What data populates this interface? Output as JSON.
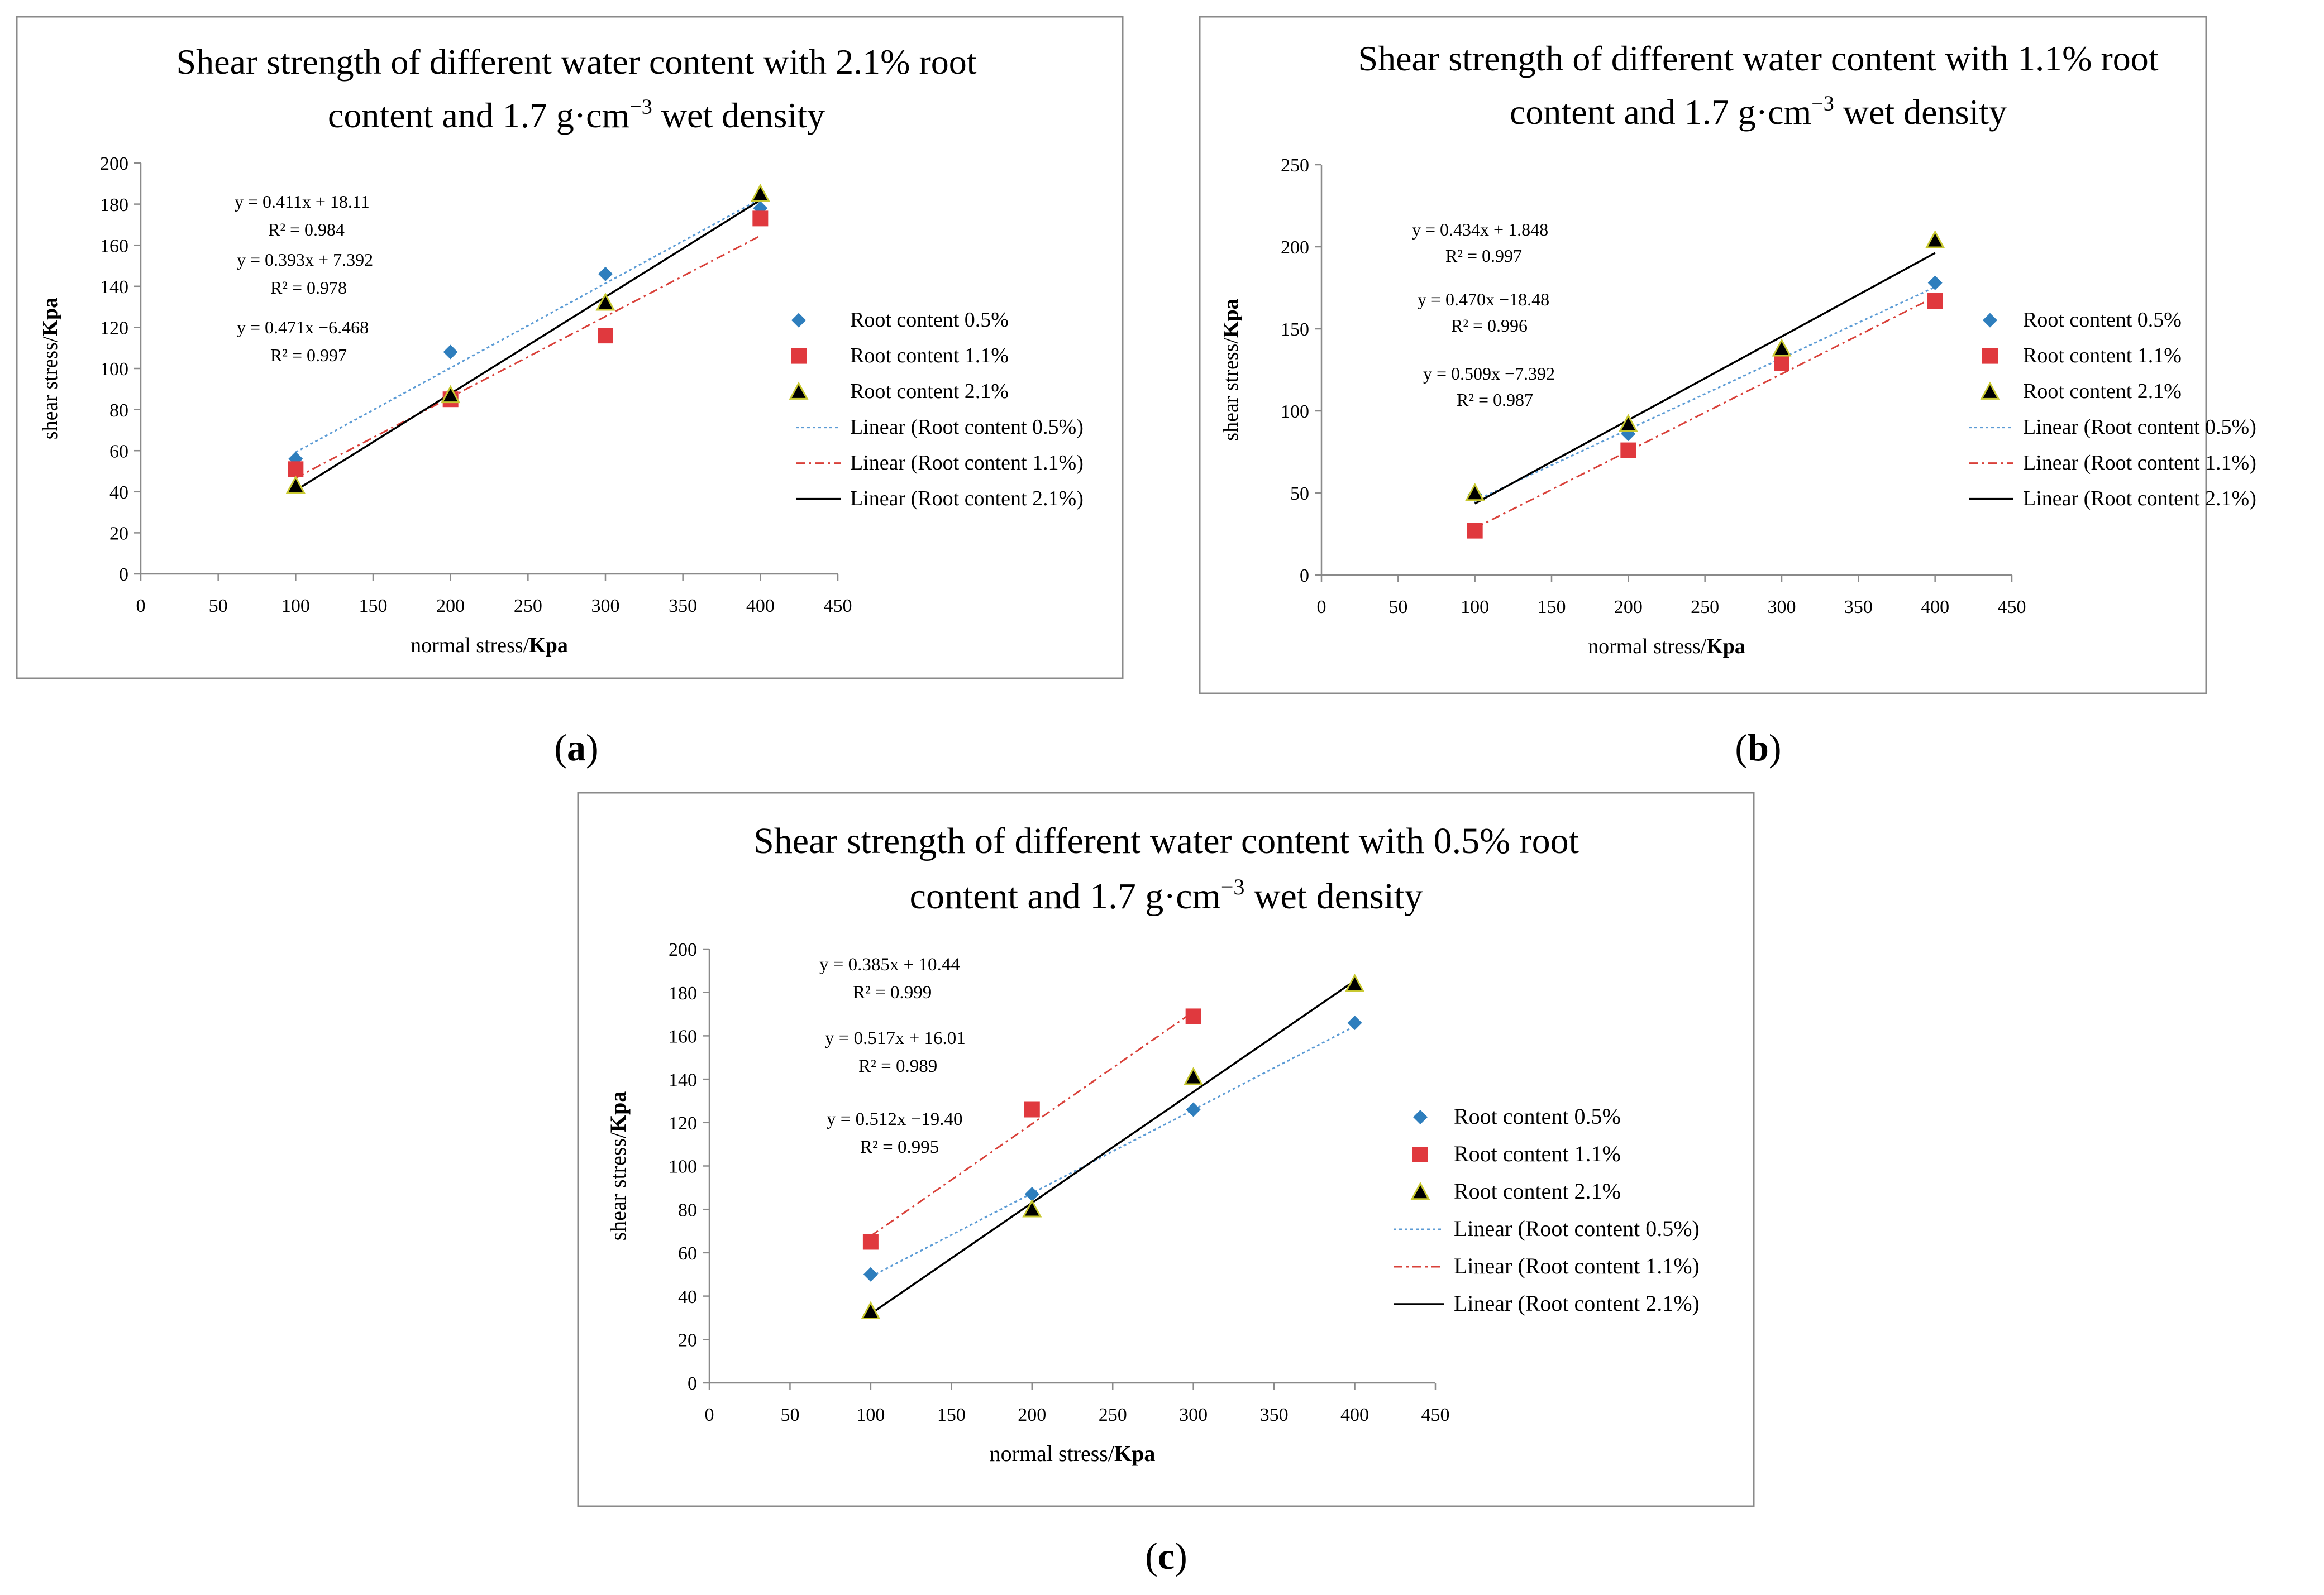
{
  "colors": {
    "series_05": "#2E7EBD",
    "series_11": "#E0393E",
    "series_21": "#000000",
    "trend_05": "#5B9BD5",
    "trend_11": "#D9413A",
    "trend_21": "#000000",
    "frame": "#8a8a8a",
    "axis": "#8a8a8a"
  },
  "chart_data": [
    {
      "id": "a",
      "type": "scatter",
      "caption_letter": "a",
      "title_line1": "Shear strength of different water content with 2.1% root",
      "title_line2_before": "content and 1.7 g·cm",
      "title_sup": "−3",
      "title_line2_after": " wet density",
      "xlabel_plain": "normal stress/",
      "xlabel_bold": "Kpa",
      "ylabel_plain": "shear stress/",
      "ylabel_bold": "Kpa",
      "xlim": [
        0,
        450
      ],
      "ylim": [
        0,
        200
      ],
      "xticks": [
        0,
        50,
        100,
        150,
        200,
        250,
        300,
        350,
        400,
        450
      ],
      "yticks": [
        0,
        20,
        40,
        60,
        80,
        100,
        120,
        140,
        160,
        180,
        200
      ],
      "series": [
        {
          "name": "Root content 0.5%",
          "marker": "diamond",
          "x": [
            100,
            200,
            300,
            400
          ],
          "y": [
            56,
            108,
            146,
            178
          ]
        },
        {
          "name": "Root content 1.1%",
          "marker": "square",
          "x": [
            100,
            200,
            300,
            400
          ],
          "y": [
            51,
            85,
            116,
            173
          ]
        },
        {
          "name": "Root content 2.1%",
          "marker": "triangle",
          "x": [
            100,
            200,
            300,
            400
          ],
          "y": [
            43,
            87,
            132,
            185
          ]
        }
      ],
      "trendlines": [
        {
          "name": "Linear (Root content 0.5%)",
          "slope": 0.411,
          "intercept": 18.11,
          "style": "dotted",
          "x_range": [
            100,
            400
          ]
        },
        {
          "name": "Linear (Root content 1.1%)",
          "slope": 0.393,
          "intercept": 7.392,
          "style": "dashdot",
          "x_range": [
            100,
            400
          ]
        },
        {
          "name": "Linear (Root content 2.1%)",
          "slope": 0.471,
          "intercept": -6.468,
          "style": "solid",
          "x_range": [
            100,
            400
          ]
        }
      ],
      "equations": [
        {
          "eq": "y = 0.411x + 18.11",
          "r2": "R² = 0.984"
        },
        {
          "eq": "y = 0.393x + 7.392",
          "r2": "R² = 0.978"
        },
        {
          "eq": "y = 0.471x −6.468",
          "r2": "R² = 0.997"
        }
      ],
      "legend_position": "right"
    },
    {
      "id": "b",
      "type": "scatter",
      "caption_letter": "b",
      "title_line1": "Shear strength of different water content with 1.1% root",
      "title_line2_before": "content and 1.7 g·cm",
      "title_sup": "−3",
      "title_line2_after": " wet density",
      "xlabel_plain": "normal stress/",
      "xlabel_bold": "Kpa",
      "ylabel_plain": "shear stress/",
      "ylabel_bold": "Kpa",
      "xlim": [
        0,
        450
      ],
      "ylim": [
        0,
        250
      ],
      "xticks": [
        0,
        50,
        100,
        150,
        200,
        250,
        300,
        350,
        400,
        450
      ],
      "yticks": [
        0,
        50,
        100,
        150,
        200,
        250
      ],
      "series": [
        {
          "name": "Root content 0.5%",
          "marker": "diamond",
          "x": [
            100,
            200,
            300,
            400
          ],
          "y": [
            49,
            86,
            133,
            178
          ]
        },
        {
          "name": "Root content 1.1%",
          "marker": "square",
          "x": [
            100,
            200,
            300,
            400
          ],
          "y": [
            27,
            76,
            129,
            167
          ]
        },
        {
          "name": "Root content 2.1%",
          "marker": "triangle",
          "x": [
            100,
            200,
            300,
            400
          ],
          "y": [
            50,
            92,
            138,
            204
          ]
        }
      ],
      "trendlines": [
        {
          "name": "Linear (Root content 0.5%)",
          "slope": 0.434,
          "intercept": 1.848,
          "style": "dotted",
          "x_range": [
            100,
            400
          ]
        },
        {
          "name": "Linear (Root content 1.1%)",
          "slope": 0.47,
          "intercept": -18.48,
          "style": "dashdot",
          "x_range": [
            100,
            400
          ]
        },
        {
          "name": "Linear (Root content 2.1%)",
          "slope": 0.509,
          "intercept": -7.392,
          "style": "solid",
          "x_range": [
            100,
            400
          ]
        }
      ],
      "equations": [
        {
          "eq": "y = 0.434x + 1.848",
          "r2": "R² = 0.997"
        },
        {
          "eq": "y = 0.470x −18.48",
          "r2": "R² = 0.996"
        },
        {
          "eq": "y = 0.509x −7.392",
          "r2": "R² = 0.987"
        }
      ],
      "legend_position": "right"
    },
    {
      "id": "c",
      "type": "scatter",
      "caption_letter": "c",
      "title_line1": "Shear strength of different water content with 0.5% root",
      "title_line2_before": "content and 1.7 g·cm",
      "title_sup": "−3",
      "title_line2_after": " wet density",
      "xlabel_plain": "normal stress/",
      "xlabel_bold": "Kpa",
      "ylabel_plain": "shear stress/",
      "ylabel_bold": "Kpa",
      "xlim": [
        0,
        450
      ],
      "ylim": [
        0,
        200
      ],
      "xticks": [
        0,
        50,
        100,
        150,
        200,
        250,
        300,
        350,
        400,
        450
      ],
      "yticks": [
        0,
        20,
        40,
        60,
        80,
        100,
        120,
        140,
        160,
        180,
        200
      ],
      "series": [
        {
          "name": "Root content 0.5%",
          "marker": "diamond",
          "x": [
            100,
            200,
            300,
            400
          ],
          "y": [
            50,
            87,
            126,
            166
          ]
        },
        {
          "name": "Root content 1.1%",
          "marker": "square",
          "x": [
            100,
            200,
            300
          ],
          "y": [
            65,
            126,
            169
          ]
        },
        {
          "name": "Root content 2.1%",
          "marker": "triangle",
          "x": [
            100,
            200,
            300,
            400
          ],
          "y": [
            33,
            80,
            141,
            184
          ]
        }
      ],
      "trendlines": [
        {
          "name": "Linear (Root content 0.5%)",
          "slope": 0.385,
          "intercept": 10.44,
          "style": "dotted",
          "x_range": [
            100,
            400
          ]
        },
        {
          "name": "Linear (Root content 1.1%)",
          "slope": 0.517,
          "intercept": 16.01,
          "style": "dashdot",
          "x_range": [
            100,
            300
          ]
        },
        {
          "name": "Linear (Root content 2.1%)",
          "slope": 0.512,
          "intercept": -19.4,
          "style": "solid",
          "x_range": [
            100,
            400
          ]
        }
      ],
      "equations": [
        {
          "eq": "y = 0.385x + 10.44",
          "r2": "R² = 0.999"
        },
        {
          "eq": "y = 0.517x + 16.01",
          "r2": "R² = 0.989"
        },
        {
          "eq": "y = 0.512x −19.40",
          "r2": "R² = 0.995"
        }
      ],
      "legend_position": "right"
    }
  ]
}
